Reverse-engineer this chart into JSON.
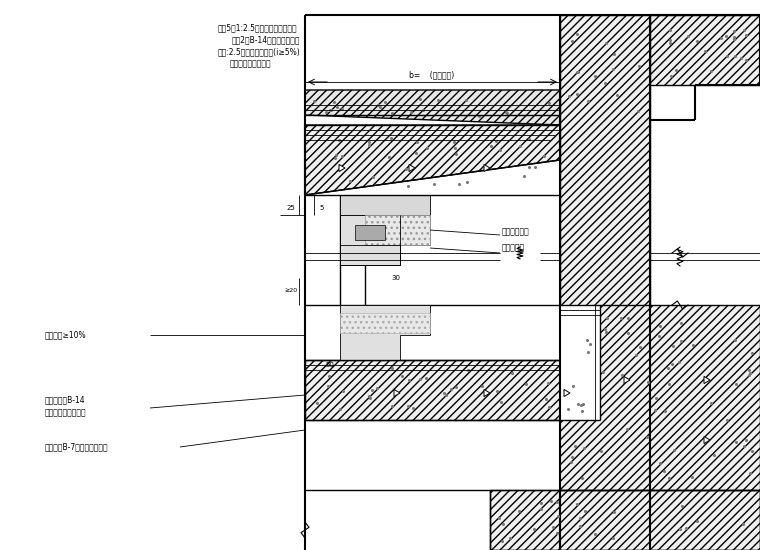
{
  "bg_color": "#ffffff",
  "lc": "#000000",
  "annotations_top": [
    "抹灰5厚1:2.5钢刷水泥砂浆找坡层",
    "涂刷2遍B-14弹性水膜防水层",
    "抹灰:2.5水泥砂浆找坡层(i≥5%)",
    "钢筋混凝土结构母板"
  ],
  "ann_right_mid": [
    "铝板龙骨框架",
    "聚氨酯泡棉"
  ],
  "ann_left_mid": "窗台坡度≥10%",
  "ann_b14": "断桥铝型材B-14",
  "ann_waterproof": "弹性水泥砂浆防水层",
  "ann_sealant": "白框清油B-7氟丁胶粘水密实",
  "dim_b": "b=    (按设计定)",
  "dim_25": "25",
  "dim_5": "5",
  "dim_30": "30",
  "dim_50": "50",
  "dim_20": "≥20"
}
